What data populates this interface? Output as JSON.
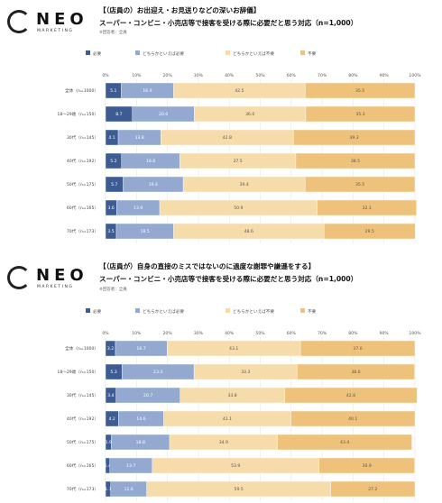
{
  "logo": {
    "word": "NEO",
    "sub": "MARKETING"
  },
  "colors": {
    "hitsuyo": "#3e5c94",
    "dochirakaHitsuyo": "#93a9cf",
    "dochirakaFuyo": "#f6dcab",
    "fuyo": "#efc27c"
  },
  "chart_data": [
    {
      "type": "bar",
      "orientation": "horizontal",
      "stacked": true,
      "title": "【（店員の）お出迎え・お見送りなどの深いお辞儀】",
      "subtitle": "スーパー・コンビニ・小売店等で接客を受ける際に必要だと思う対応（n=1,000）",
      "note": "※回答者：全員",
      "xlim": [
        0,
        100
      ],
      "x_ticks": [
        "0%",
        "10%",
        "20%",
        "30%",
        "40%",
        "50%",
        "60%",
        "70%",
        "80%",
        "90%",
        "100%"
      ],
      "legend_position": "top",
      "categories": [
        "全体（n=1000）",
        "18～29歳（n=150）",
        "30代（n=145）",
        "40代（n=192）",
        "50代（n=175）",
        "60代（n=165）",
        "70代（n=173）"
      ],
      "series": [
        {
          "name": "必要",
          "values": [
            5.1,
            8.7,
            4.1,
            5.2,
            5.7,
            3.6,
            3.5
          ]
        },
        {
          "name": "どちらかといえば必要",
          "values": [
            16.9,
            20.0,
            13.8,
            18.8,
            19.4,
            13.9,
            18.5
          ]
        },
        {
          "name": "どちらかといえば不要",
          "values": [
            42.5,
            36.0,
            42.8,
            37.5,
            39.4,
            50.9,
            48.6
          ]
        },
        {
          "name": "不要",
          "values": [
            35.5,
            35.3,
            39.3,
            38.5,
            35.5,
            32.1,
            29.5
          ]
        }
      ]
    },
    {
      "type": "bar",
      "orientation": "horizontal",
      "stacked": true,
      "title": "【（店員が）自身の直接のミスではないのに過度な謝罪や謙遜をする】",
      "subtitle": "スーパー・コンビニ・小売店等で接客を受ける際に必要だと思う対応（n=1,000）",
      "note": "※回答者：全員",
      "xlim": [
        0,
        100
      ],
      "x_ticks": [
        "0%",
        "10%",
        "20%",
        "30%",
        "40%",
        "50%",
        "60%",
        "70%",
        "80%",
        "90%",
        "100%"
      ],
      "legend_position": "top",
      "categories": [
        "全体（n=1000）",
        "18～29歳（n=150）",
        "30代（n=145）",
        "40代（n=192）",
        "50代（n=175）",
        "60代（n=165）",
        "70代（n=173）"
      ],
      "series": [
        {
          "name": "必要",
          "values": [
            3.2,
            5.3,
            3.4,
            4.2,
            1.9,
            1.4,
            1.7
          ]
        },
        {
          "name": "どちらかといえば必要",
          "values": [
            16.7,
            23.3,
            20.7,
            14.6,
            18.8,
            13.7,
            11.6
          ]
        },
        {
          "name": "どちらかといえば不要",
          "values": [
            43.1,
            33.3,
            33.8,
            41.1,
            34.9,
            53.9,
            59.5
          ]
        },
        {
          "name": "不要",
          "values": [
            37.0,
            38.0,
            42.8,
            40.1,
            43.4,
            30.9,
            27.2
          ]
        }
      ]
    }
  ]
}
